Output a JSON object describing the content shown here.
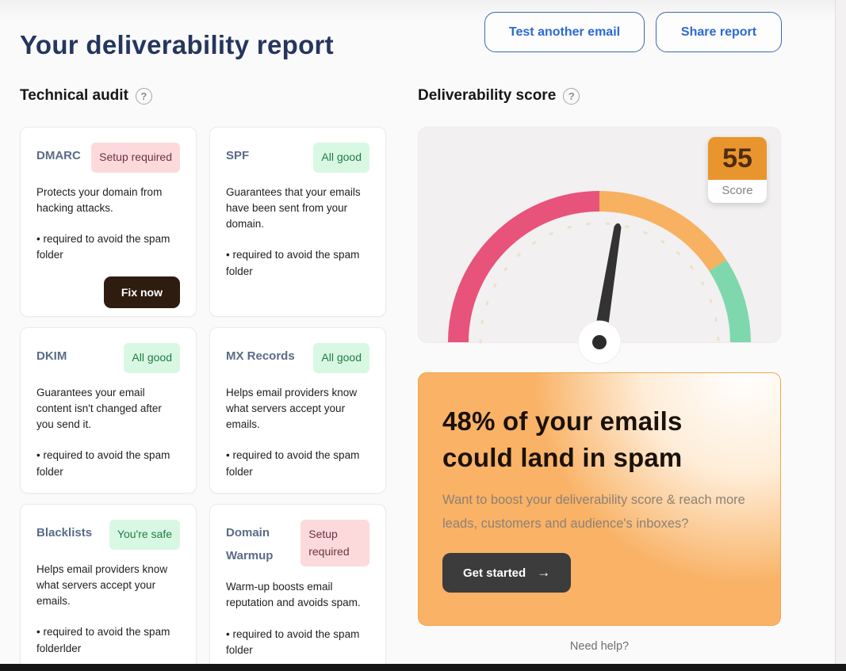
{
  "page": {
    "title": "Your deliverability report",
    "actions": {
      "test_another_email": "Test another email",
      "share_report": "Share report"
    },
    "need_help": "Need help?"
  },
  "technical_audit": {
    "heading": "Technical audit",
    "help_icon": "?",
    "cards": [
      {
        "id": "dmarc",
        "title": "DMARC",
        "badge": "Setup required",
        "badge_type": "danger",
        "description": "Protects your domain from hacking attacks.",
        "note": "• required to avoid the spam folder",
        "action": "Fix now"
      },
      {
        "id": "spf",
        "title": "SPF",
        "badge": "All good",
        "badge_type": "success",
        "description": "Guarantees that your emails have been sent from your domain.",
        "note": "• required to avoid the spam folder"
      },
      {
        "id": "dkim",
        "title": "DKIM",
        "badge": "All good",
        "badge_type": "success",
        "description": "Guarantees your email content isn't changed after you send it.",
        "note": "• required to avoid the spam folder"
      },
      {
        "id": "mx-records",
        "title": "MX Records",
        "badge": "All good",
        "badge_type": "success",
        "description": "Helps email providers know what servers accept your emails.",
        "note": "• required to avoid the spam folder"
      },
      {
        "id": "blacklists",
        "title": "Blacklists",
        "badge": "You're safe",
        "badge_type": "success",
        "description": "Helps email providers know what servers accept your emails.",
        "note": "• required to avoid the spam folderlder"
      },
      {
        "id": "domain-warmup",
        "title": "Domain Warmup",
        "badge": "Setup required",
        "badge_type": "danger",
        "description": "Warm-up boosts email reputation and avoids spam.",
        "note": "• required to avoid the spam folder"
      }
    ]
  },
  "deliverability": {
    "heading": "Deliverability score",
    "help_icon": "?",
    "score": 55,
    "score_label": "Score",
    "gauge": {
      "min": 0,
      "max": 100,
      "value": 55,
      "segments": [
        {
          "label": "low",
          "from": 0,
          "to": 50,
          "color": "#e7537a"
        },
        {
          "label": "medium",
          "from": 50,
          "to": 81,
          "color": "#f7b161"
        },
        {
          "label": "high",
          "from": 81,
          "to": 100,
          "color": "#7fd8ad"
        }
      ]
    },
    "cta": {
      "headline": "48% of your emails could land in spam",
      "subtext": "Want to boost your deliverability score & reach more leads, customers and audience's inboxes?",
      "button": "Get started",
      "button_arrow": "→"
    }
  },
  "colors": {
    "title_navy": "#25365e",
    "outline_button_blue": "#2b69d3",
    "badge_danger_bg": "#fcdadb",
    "badge_danger_text": "#6d3340",
    "badge_success_bg": "#d9f8e3",
    "badge_success_text": "#1f7c45",
    "score_box_orange": "#e9952d",
    "cta_orange": "#f9b266",
    "fix_button_brown": "#2f1c10",
    "needle_dark": "#333333"
  }
}
